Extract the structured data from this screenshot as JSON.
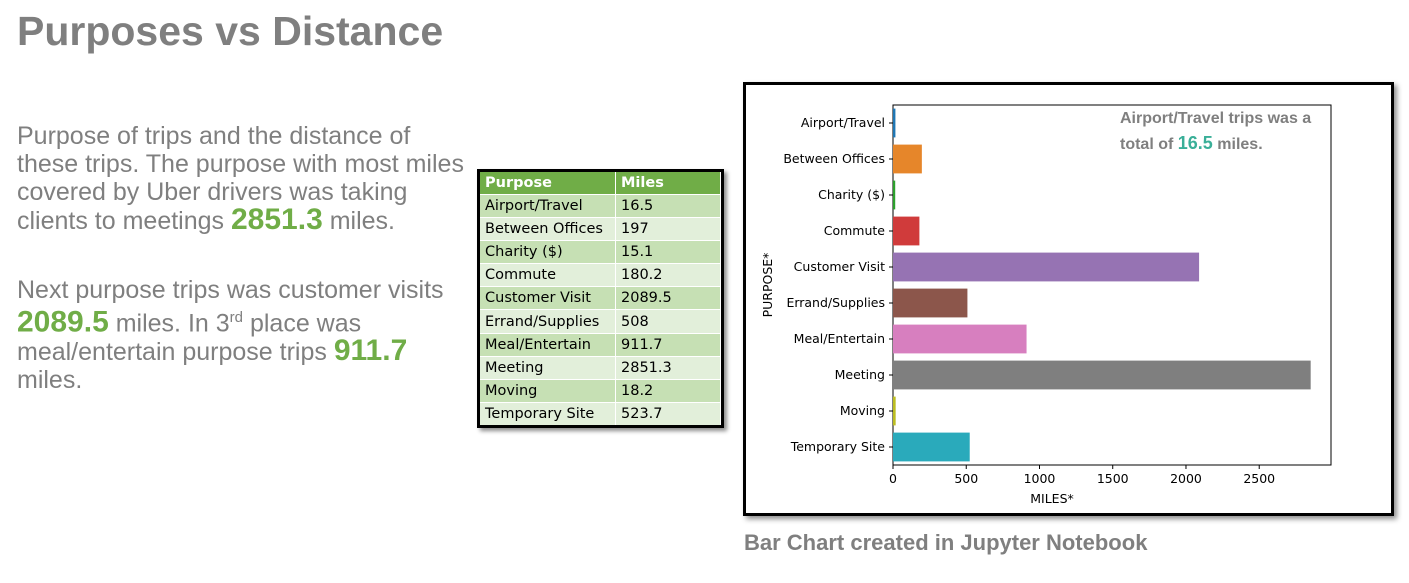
{
  "title": "Purposes vs Distance",
  "para1": {
    "text": "Purpose of trips and the distance of these trips. The purpose with most miles covered by Uber drivers was taking clients to meetings",
    "value": "2851.3",
    "tail": "miles."
  },
  "para2": {
    "a": "Next purpose trips was customer visits",
    "value1": "2089.5",
    "b": "miles. In 3",
    "sup": "rd",
    "c": "place was meal/entertain purpose trips",
    "value2": "911.7",
    "d": "miles."
  },
  "table": {
    "headers": [
      "Purpose",
      "Miles"
    ],
    "rows": [
      [
        "Airport/Travel",
        "16.5"
      ],
      [
        "Between Offices",
        "197"
      ],
      [
        "Charity ($)",
        "15.1"
      ],
      [
        "Commute",
        "180.2"
      ],
      [
        "Customer Visit",
        "2089.5"
      ],
      [
        "Errand/Supplies",
        "508"
      ],
      [
        "Meal/Entertain",
        "911.7"
      ],
      [
        "Meeting",
        "2851.3"
      ],
      [
        "Moving",
        "18.2"
      ],
      [
        "Temporary Site",
        "523.7"
      ]
    ]
  },
  "annotation": {
    "line1": "Airport/Travel trips was a",
    "pre": "total of",
    "value": "16.5",
    "post": "miles."
  },
  "caption": "Bar Chart created in Jupyter Notebook",
  "chart_data": {
    "type": "bar",
    "orientation": "horizontal",
    "categories": [
      "Airport/Travel",
      "Between Offices",
      "Charity ($)",
      "Commute",
      "Customer Visit",
      "Errand/Supplies",
      "Meal/Entertain",
      "Meeting",
      "Moving",
      "Temporary Site"
    ],
    "values": [
      16.5,
      197,
      15.1,
      180.2,
      2089.5,
      508,
      911.7,
      2851.3,
      18.2,
      523.7
    ],
    "colors": [
      "#1f77b4",
      "#e6862a",
      "#2ca02c",
      "#d03b3b",
      "#9673b3",
      "#8c564b",
      "#d77fbf",
      "#7f7f7f",
      "#bcbd22",
      "#2aaabb"
    ],
    "xlabel": "MILES*",
    "ylabel": "PURPOSE*",
    "xticks": [
      0,
      500,
      1000,
      1500,
      2000,
      2500
    ],
    "xlim": [
      0,
      2990
    ]
  }
}
